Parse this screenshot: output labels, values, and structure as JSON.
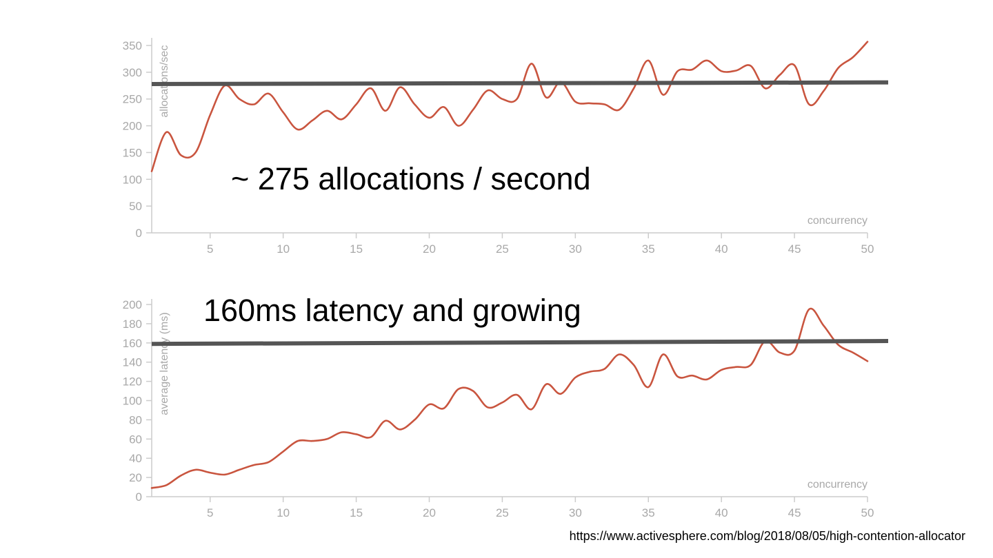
{
  "colors": {
    "series": "#c9553f",
    "reference": "#555555",
    "axis": "#cccccc",
    "text": "#a8a8a8"
  },
  "source_url": "https://www.activesphere.com/blog/2018/08/05/high-contention-allocator",
  "chart_data": [
    {
      "type": "line",
      "xlabel": "concurrency",
      "ylabel": "allocations/sec",
      "xlim": [
        1,
        50
      ],
      "ylim": [
        0,
        350
      ],
      "xticks": [
        "5",
        "10",
        "15",
        "20",
        "25",
        "30",
        "35",
        "40",
        "45",
        "50"
      ],
      "yticks": [
        "0",
        "50",
        "100",
        "150",
        "200",
        "250",
        "300",
        "350"
      ],
      "annotation": "~ 275 allocations / second",
      "reference_line": {
        "y_start": 278,
        "y_end": 281
      },
      "series": [
        {
          "x": [
            1,
            2,
            3,
            4,
            5,
            6,
            7,
            8,
            9,
            10,
            11,
            12,
            13,
            14,
            15,
            16,
            17,
            18,
            19,
            20,
            21,
            22,
            23,
            24,
            25,
            26,
            27,
            28,
            29,
            30,
            31,
            32,
            33,
            34,
            35,
            36,
            37,
            38,
            39,
            40,
            41,
            42,
            43,
            44,
            45,
            46,
            47,
            48,
            49,
            50
          ],
          "y": [
            115,
            188,
            145,
            150,
            220,
            275,
            250,
            240,
            260,
            225,
            193,
            210,
            228,
            212,
            240,
            270,
            228,
            272,
            240,
            215,
            235,
            200,
            230,
            266,
            250,
            250,
            316,
            253,
            282,
            245,
            242,
            240,
            230,
            270,
            322,
            258,
            302,
            305,
            322,
            302,
            303,
            312,
            270,
            295,
            313,
            240,
            265,
            308,
            328,
            357
          ]
        }
      ]
    },
    {
      "type": "line",
      "xlabel": "concurrency",
      "ylabel": "average latency (ms)",
      "xlim": [
        1,
        50
      ],
      "ylim": [
        0,
        200
      ],
      "xticks": [
        "5",
        "10",
        "15",
        "20",
        "25",
        "30",
        "35",
        "40",
        "45",
        "50"
      ],
      "yticks": [
        "0",
        "20",
        "40",
        "60",
        "80",
        "100",
        "120",
        "140",
        "160",
        "180",
        "200"
      ],
      "annotation": "160ms latency and growing",
      "reference_line": {
        "y_start": 159,
        "y_end": 162
      },
      "series": [
        {
          "x": [
            1,
            2,
            3,
            4,
            5,
            6,
            7,
            8,
            9,
            10,
            11,
            12,
            13,
            14,
            15,
            16,
            17,
            18,
            19,
            20,
            21,
            22,
            23,
            24,
            25,
            26,
            27,
            28,
            29,
            30,
            31,
            32,
            33,
            34,
            35,
            36,
            37,
            38,
            39,
            40,
            41,
            42,
            43,
            44,
            45,
            46,
            47,
            48,
            49,
            50
          ],
          "y": [
            9,
            12,
            22,
            28,
            25,
            23,
            28,
            33,
            36,
            47,
            58,
            58,
            60,
            67,
            65,
            62,
            79,
            70,
            80,
            96,
            92,
            112,
            110,
            93,
            98,
            106,
            91,
            117,
            107,
            124,
            130,
            133,
            148,
            137,
            114,
            148,
            125,
            126,
            122,
            132,
            135,
            137,
            162,
            150,
            152,
            195,
            178,
            158,
            150,
            141
          ]
        }
      ]
    }
  ]
}
